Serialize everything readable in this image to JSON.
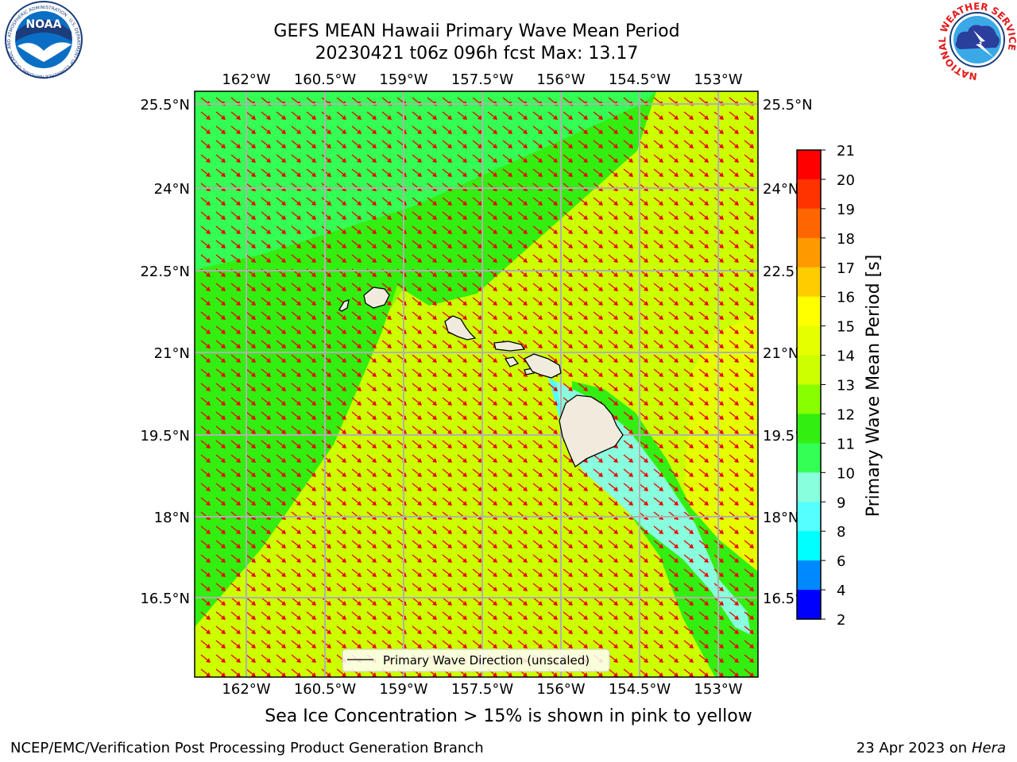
{
  "header": {
    "title_line1": "GEFS MEAN Hawaii Primary Wave Mean Period",
    "title_line2": "20230421 t06z 096h fcst   Max: 13.17"
  },
  "logos": {
    "left_text": "NOAA",
    "left_ring": "NATIONAL OCEANIC AND ATMOSPHERIC ADMINISTRATION · U.S. DEPARTMENT OF COMMERCE",
    "right_ring": "NATIONAL WEATHER SERVICE"
  },
  "map": {
    "lon_ticks": [
      "162°W",
      "160.5°W",
      "159°W",
      "157.5°W",
      "156°W",
      "154.5°W",
      "153°W"
    ],
    "lat_ticks": [
      "25.5°N",
      "24°N",
      "22.5°N",
      "21°N",
      "19.5°N",
      "18°N",
      "16.5°N"
    ],
    "legend_label": "Primary Wave Direction (unscaled)",
    "colors": {
      "band_11_12": "#33ee11",
      "band_10_11": "#33ff55",
      "band_12_13": "#88ff00",
      "band_13_14": "#ccff00",
      "band_14_15": "#e6ff00",
      "band_9_10": "#88ffdd",
      "band_8_9": "#55ffff",
      "land": "#f0ebdc",
      "arrow": "#ee0000",
      "grid": "#b0b0b0"
    }
  },
  "colorbar": {
    "title": "Primary Wave Mean Period [s]",
    "labels": [
      "21",
      "20",
      "19",
      "18",
      "17",
      "16",
      "15",
      "14",
      "13",
      "12",
      "11",
      "10",
      "9",
      "8",
      "6",
      "4",
      "2"
    ],
    "colors": [
      "#ff0000",
      "#ff3300",
      "#ff6600",
      "#ff9900",
      "#ffcc00",
      "#ffff00",
      "#e6ff00",
      "#ccff00",
      "#88ff00",
      "#33ee11",
      "#33ff55",
      "#88ffdd",
      "#55ffff",
      "#00ffff",
      "#0088ff",
      "#0000ff"
    ]
  },
  "footer": {
    "subtitle": "Sea Ice Concentration > 15% is shown in pink to yellow",
    "left": "NCEP/EMC/Verification Post Processing Product Generation Branch",
    "right_prefix": "23 Apr 2023 on ",
    "right_host": "Hera"
  }
}
